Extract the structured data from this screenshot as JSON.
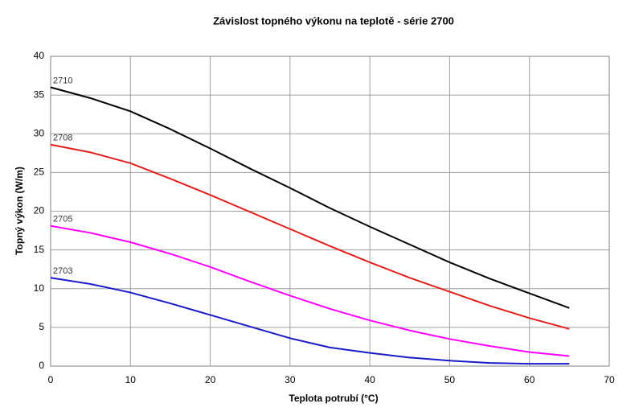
{
  "chart_data": {
    "type": "line",
    "title": "Závislost topného výkonu na teplotě - série 2700",
    "x_label": "Teplota potrubí (°C)",
    "y_label": "Topný výkon (W/m)",
    "x": [
      0,
      5,
      10,
      15,
      20,
      25,
      30,
      35,
      40,
      45,
      50,
      55,
      60,
      65
    ],
    "series": [
      {
        "name": "2710",
        "color": "#000000",
        "values": [
          36,
          34.6,
          32.9,
          30.6,
          28.1,
          25.5,
          23,
          20.4,
          18,
          15.7,
          13.4,
          11.3,
          9.4,
          7.5
        ]
      },
      {
        "name": "2708",
        "color": "#e0201c",
        "values": [
          28.6,
          27.6,
          26.2,
          24.2,
          22.1,
          19.9,
          17.7,
          15.5,
          13.4,
          11.4,
          9.6,
          7.8,
          6.2,
          4.8
        ]
      },
      {
        "name": "2705",
        "color": "#ff00ff",
        "values": [
          18.1,
          17.2,
          16,
          14.5,
          12.8,
          10.9,
          9.1,
          7.4,
          5.9,
          4.6,
          3.5,
          2.6,
          1.8,
          1.3
        ]
      },
      {
        "name": "2703",
        "color": "#1a1ac8",
        "values": [
          11.4,
          10.6,
          9.5,
          8.1,
          6.6,
          5.1,
          3.6,
          2.4,
          1.7,
          1.1,
          0.7,
          0.4,
          0.3,
          0.3
        ]
      }
    ],
    "xlim": [
      0,
      70
    ],
    "xticks": [
      0,
      10,
      20,
      30,
      40,
      50,
      60,
      70
    ],
    "ylim": [
      0,
      40
    ],
    "yticks": [
      0,
      5,
      10,
      15,
      20,
      25,
      30,
      35,
      40
    ],
    "grid": true
  }
}
